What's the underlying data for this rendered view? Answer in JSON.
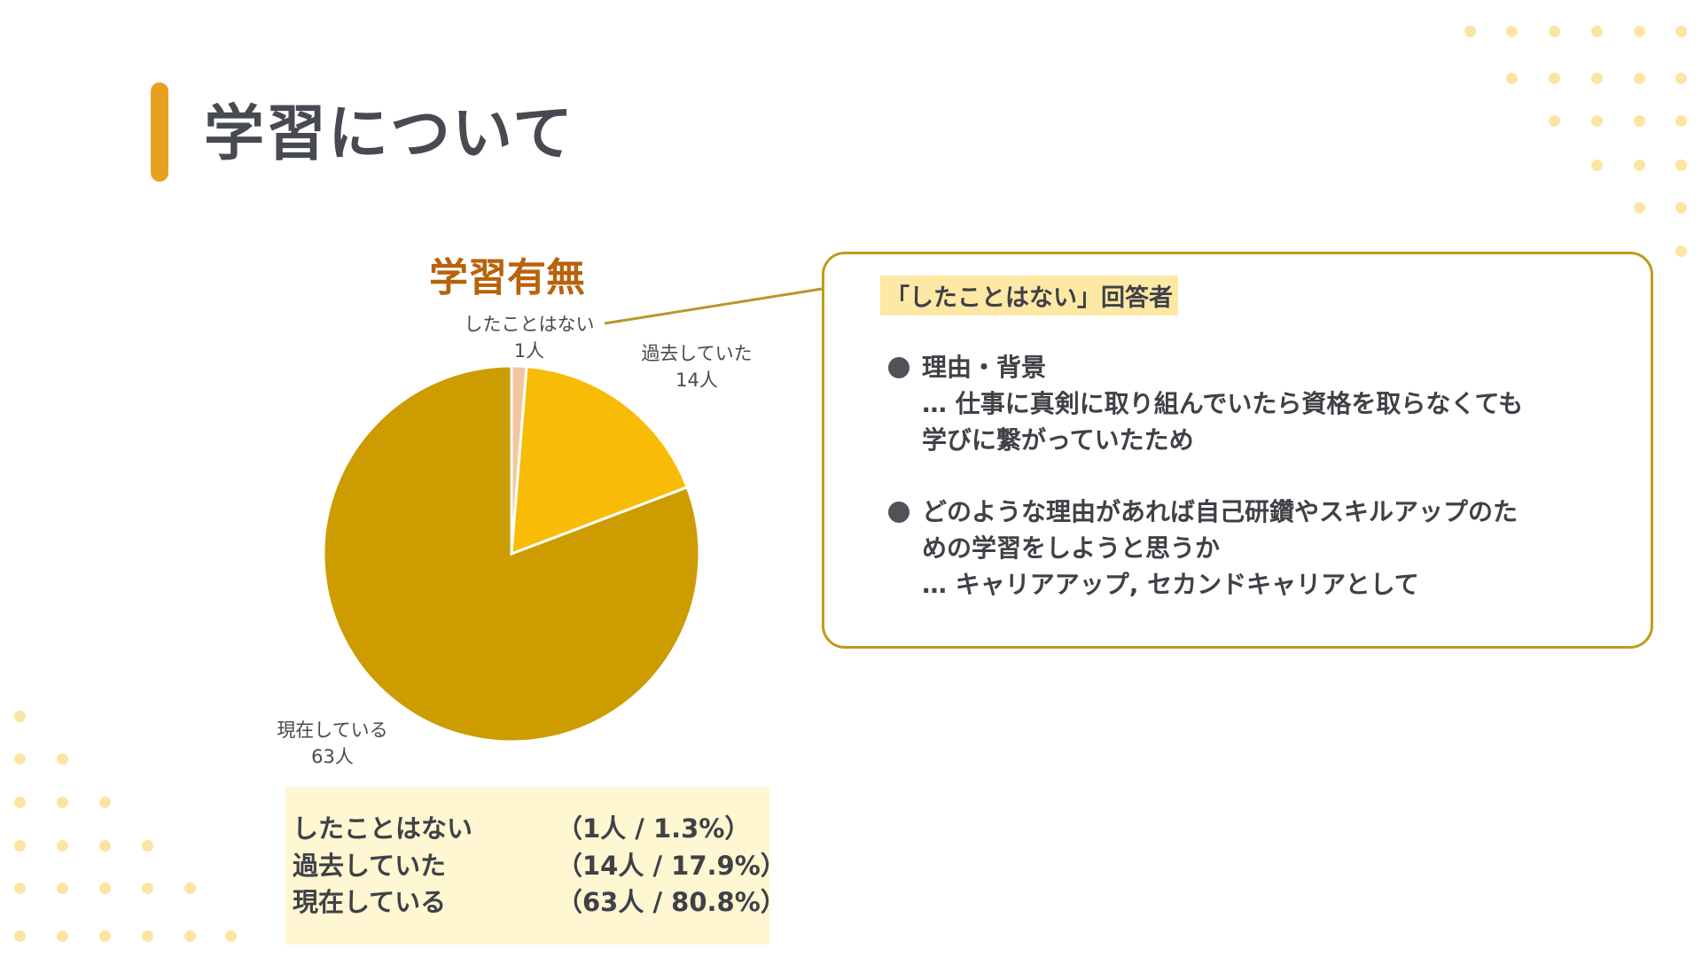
{
  "page": {
    "title": "学習について"
  },
  "colors": {
    "accent": "#e8a020",
    "slice_never": "#f2c7a0",
    "slice_past": "#f8bc07",
    "slice_current": "#cc9c00",
    "callout_border": "#c19a1d",
    "highlight": "#fde8a6",
    "legend_bg": "#fff6d2",
    "dots": "#fbe5a3"
  },
  "chart_data": {
    "type": "pie",
    "title": "学習有無",
    "categories": [
      "したことはない",
      "過去していた",
      "現在している"
    ],
    "values": [
      1,
      14,
      63
    ],
    "value_labels": [
      "1人",
      "14人",
      "63人"
    ]
  },
  "callout": {
    "heading": "「したことはない」回答者",
    "bullets": [
      {
        "title": "理由・背景",
        "detail_lines": [
          "… 仕事に真剣に取り組んでいたら資格を取らなくても",
          "学びに繋がっていたため"
        ]
      },
      {
        "title_lines": [
          "どのような理由があれば自己研鑽やスキルアップのた",
          "めの学習をしようと思うか"
        ],
        "detail_lines": [
          "… キャリアアップ, セカンドキャリアとして"
        ]
      }
    ]
  },
  "legend": {
    "rows": [
      {
        "label": "したことはない",
        "value": "（1人 / 1.3%）"
      },
      {
        "label": "過去していた",
        "value": "（14人 / 17.9%）"
      },
      {
        "label": "現在している",
        "value": "（63人 / 80.8%）"
      }
    ]
  }
}
